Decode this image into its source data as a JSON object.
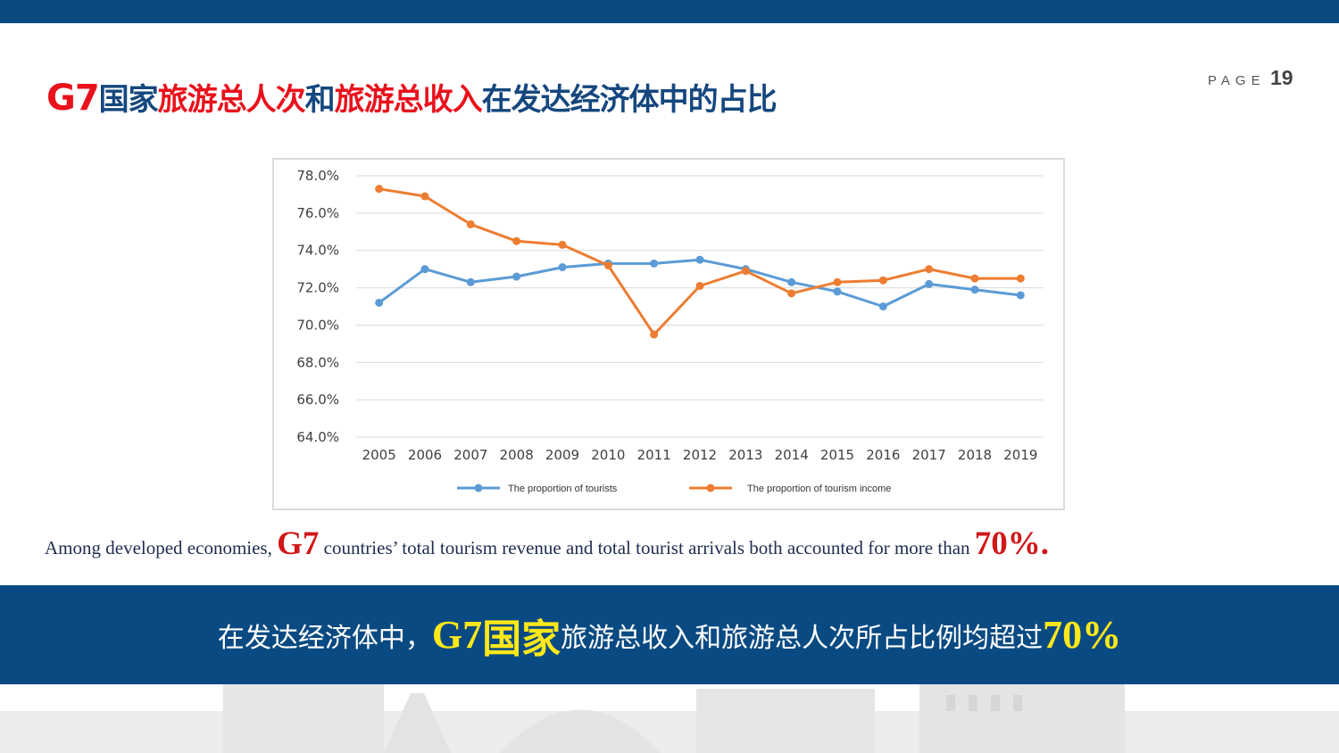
{
  "header": {
    "title_g7": "G7",
    "title_part1": "国家",
    "title_part2": "旅游总人次",
    "title_part3": "和",
    "title_part4": "旅游总收入",
    "title_part5": "在发达经济体中的占比",
    "page_label": "PAGE",
    "page_number": "19"
  },
  "chart_data": {
    "type": "line",
    "title": "",
    "xlabel": "",
    "ylabel": "",
    "categories": [
      "2005",
      "2006",
      "2007",
      "2008",
      "2009",
      "2010",
      "2011",
      "2012",
      "2013",
      "2014",
      "2015",
      "2016",
      "2017",
      "2018",
      "2019"
    ],
    "y_ticks": [
      "64.0%",
      "66.0%",
      "68.0%",
      "70.0%",
      "72.0%",
      "74.0%",
      "76.0%",
      "78.0%"
    ],
    "ylim": [
      64,
      78
    ],
    "grid": true,
    "legend_position": "bottom",
    "series": [
      {
        "name": "The proportion of tourists",
        "color": "#5b9bd5",
        "values": [
          71.2,
          73.0,
          72.3,
          72.6,
          73.1,
          73.3,
          73.3,
          73.5,
          73.0,
          72.3,
          71.8,
          71.0,
          72.2,
          71.9,
          71.6
        ]
      },
      {
        "name": "The proportion of tourism income",
        "color": "#ed7d31",
        "values": [
          77.3,
          76.9,
          75.4,
          74.5,
          74.3,
          73.2,
          69.5,
          72.1,
          72.9,
          71.7,
          72.3,
          72.4,
          73.0,
          72.5,
          72.5
        ]
      }
    ]
  },
  "caption": {
    "part1": "Among developed economies, ",
    "g7": "G7",
    "part2": " countries’ total tourism revenue and total tourist arrivals both accounted for more than ",
    "pct": "70%."
  },
  "banner": {
    "part1": "在发达经济体中，",
    "g7": "G7",
    "guojia": "国家",
    "part2": "旅游总收入和旅游总人次所占比例均超过",
    "pct": "70%"
  },
  "colors": {
    "brand_blue": "#0a4a82",
    "accent_red": "#e8121c",
    "highlight_yellow": "#ffe81a"
  }
}
